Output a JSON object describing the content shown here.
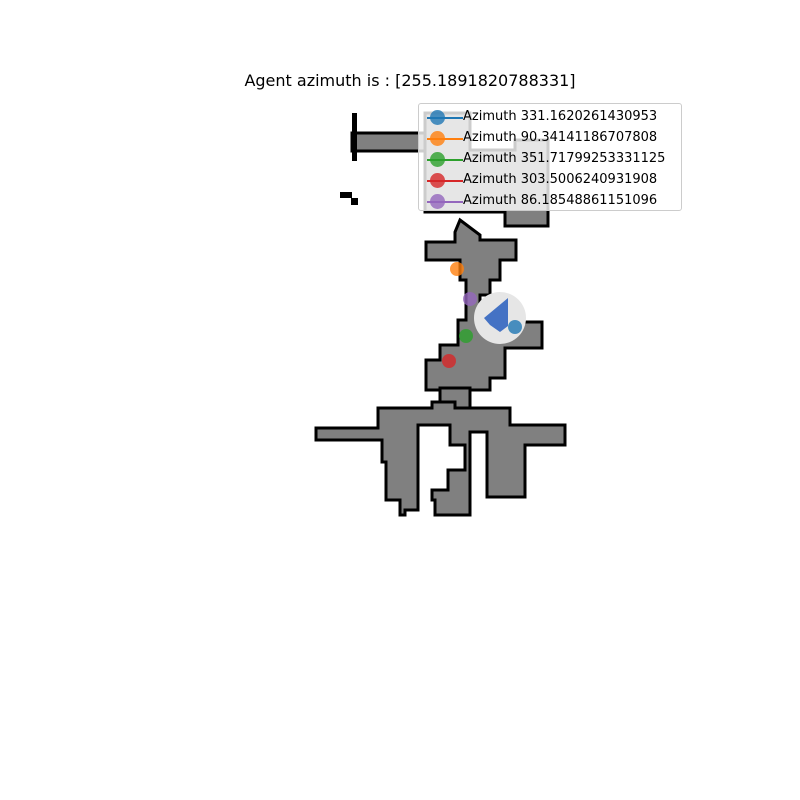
{
  "title": "Agent azimuth is : [255.1891820788331]",
  "map": {
    "free_color": "#808080",
    "wall_color": "#000000",
    "background_color": "#ffffff",
    "agent_color": "#4472c4"
  },
  "legend": [
    {
      "label": "Azimuth 331.1620261430953",
      "color": "#1f77b4"
    },
    {
      "label": "Azimuth 90.34141186707808",
      "color": "#ff7f0e"
    },
    {
      "label": "Azimuth 351.71799253331125",
      "color": "#2ca02c"
    },
    {
      "label": "Azimuth 303.5006240931908",
      "color": "#d62728"
    },
    {
      "label": "Azimuth 86.18548861151096",
      "color": "#9467bd"
    }
  ]
}
